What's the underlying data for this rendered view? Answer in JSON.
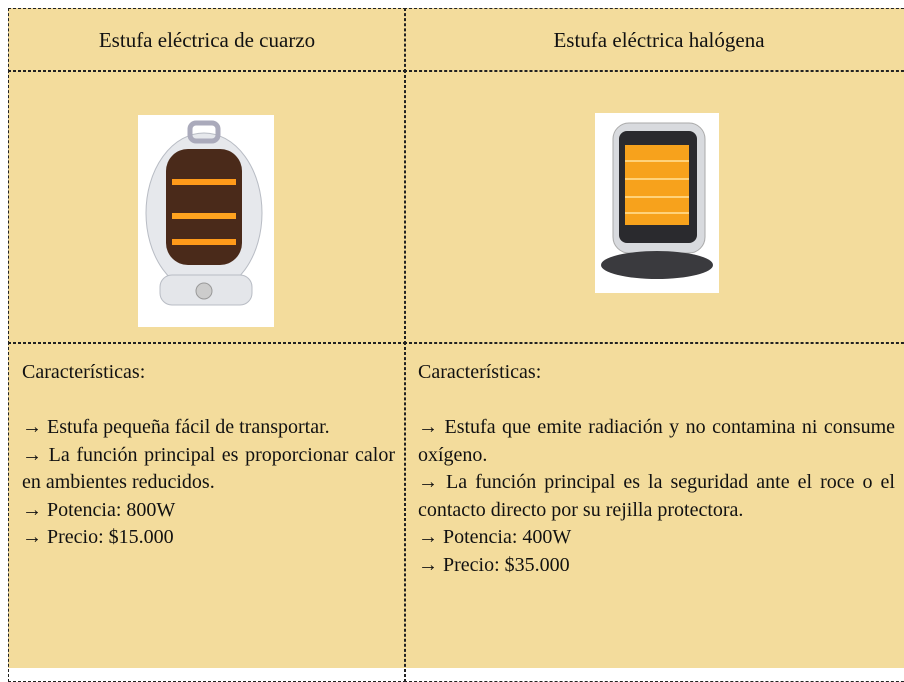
{
  "table": {
    "header": [
      "Estufa eléctrica de cuarzo",
      "Estufa eléctrica halógena"
    ],
    "columns": [
      {
        "heading": "Características:",
        "items": [
          "→ Estufa pequeña fácil de transportar.",
          "→ La función principal es proporcionar calor en ambientes reducidos.",
          "→ Potencia: 800W",
          "→ Precio: $15.000"
        ]
      },
      {
        "heading": "Características:",
        "items": [
          "→ Estufa que emite radiación y no contamina ni consume oxígeno.",
          "→ La función principal es la seguridad ante el roce o el contacto directo por su rejilla protectora.",
          "→ Potencia: 400W",
          "→ Precio: $35.000"
        ]
      }
    ]
  }
}
